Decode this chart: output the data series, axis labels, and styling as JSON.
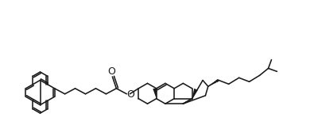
{
  "bg_color": "#ffffff",
  "line_color": "#2a2a2a",
  "figure_width": 3.95,
  "figure_height": 1.77,
  "dpi": 100
}
